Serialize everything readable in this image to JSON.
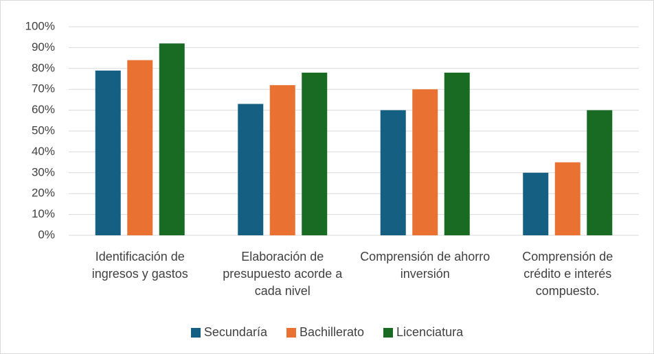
{
  "chart_data": {
    "type": "bar",
    "categories": [
      "Identificación de ingresos y gastos",
      "Elaboración de presupuesto acorde a cada nivel",
      "Comprensión de ahorro inversión",
      "Comprensión de crédito e interés compuesto."
    ],
    "series": [
      {
        "name": "Secundaría",
        "color": "#156082",
        "values": [
          79,
          63,
          60,
          30
        ]
      },
      {
        "name": "Bachillerato",
        "color": "#e97132",
        "values": [
          84,
          72,
          70,
          35
        ]
      },
      {
        "name": "Licenciatura",
        "color": "#196b24",
        "values": [
          92,
          78,
          78,
          60
        ]
      }
    ],
    "ylim": [
      0,
      100
    ],
    "yticks": [
      {
        "value": 0,
        "label": "0%"
      },
      {
        "value": 10,
        "label": "10%"
      },
      {
        "value": 20,
        "label": "20%"
      },
      {
        "value": 30,
        "label": "30%"
      },
      {
        "value": 40,
        "label": "40%"
      },
      {
        "value": 50,
        "label": "50%"
      },
      {
        "value": 60,
        "label": "60%"
      },
      {
        "value": 70,
        "label": "70%"
      },
      {
        "value": 80,
        "label": "80%"
      },
      {
        "value": 90,
        "label": "90%"
      },
      {
        "value": 100,
        "label": "100%"
      }
    ],
    "grid": true,
    "legend": "bottom"
  }
}
